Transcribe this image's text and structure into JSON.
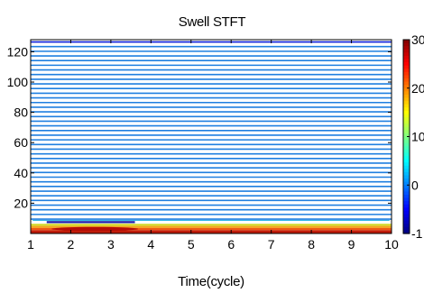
{
  "chart_data": {
    "type": "heatmap",
    "title": "Swell STFT",
    "xlabel": "Time(cycle)",
    "ylabel": "",
    "xlim": [
      1,
      10
    ],
    "ylim": [
      0,
      128
    ],
    "xticks": [
      "1",
      "2",
      "3",
      "4",
      "5",
      "6",
      "7",
      "8",
      "9",
      "10"
    ],
    "yticks": [
      "20",
      "40",
      "60",
      "80",
      "100",
      "120"
    ],
    "colorbar": {
      "range": [
        -10,
        30
      ],
      "ticks": [
        "-1",
        "0",
        "10",
        "20",
        "30"
      ],
      "colormap": "jet"
    },
    "series": [
      {
        "description": "stacked contour bands across frequency axis",
        "value_min": -10,
        "value_max": 30
      }
    ],
    "features": {
      "horizontal_band_lines": 39,
      "line_color": "#1f7fe0",
      "top_line_color": "#0c1ed9",
      "bottom_bands": [
        "#d4d82a",
        "#f5a220",
        "#ef5a14",
        "#c11c0a"
      ],
      "swell_segment": {
        "x_start": 1.4,
        "x_end": 3.6,
        "y": 7.5,
        "color": "#1a1aa8"
      }
    }
  }
}
